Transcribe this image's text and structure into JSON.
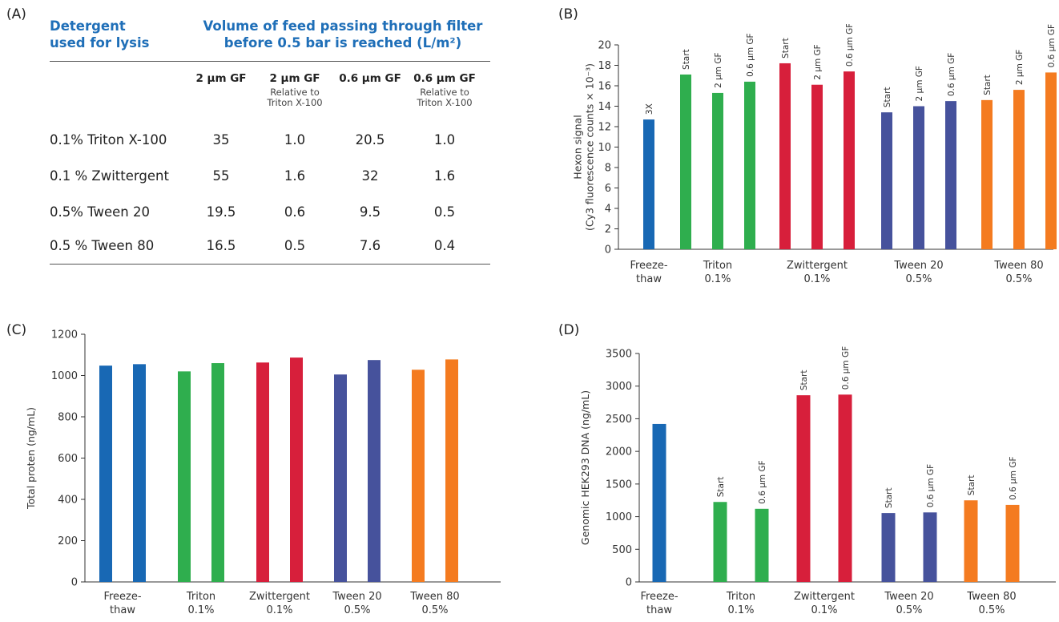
{
  "table": {
    "label": "(A)",
    "header_left": [
      "Detergent",
      "used for lysis"
    ],
    "header_right": [
      "Volume of feed passing through filter",
      "before 0.5 bar is reached (L/m²)"
    ],
    "columns": [
      {
        "main": "2 µm GF",
        "sub": [
          "",
          ""
        ]
      },
      {
        "main": "2 µm GF",
        "sub": [
          "Relative to",
          "Triton X-100"
        ]
      },
      {
        "main": "0.6 µm GF",
        "sub": [
          "",
          ""
        ]
      },
      {
        "main": "0.6 µm GF",
        "sub": [
          "Relative to",
          "Triton X-100"
        ]
      }
    ],
    "rows": [
      {
        "detergent": "0.1% Triton X-100",
        "values": [
          "35",
          "1.0",
          "20.5",
          "1.0"
        ]
      },
      {
        "detergent": "0.1 % Zwittergent",
        "values": [
          "55",
          "1.6",
          "32",
          "1.6"
        ]
      },
      {
        "detergent": "0.5% Tween 20",
        "values": [
          "19.5",
          "0.6",
          "9.5",
          "0.5"
        ]
      },
      {
        "detergent": "0.5 % Tween 80",
        "values": [
          "16.5",
          "0.5",
          "7.6",
          "0.4"
        ]
      }
    ]
  },
  "chart_data": [
    {
      "panel": "(B)",
      "type": "bar",
      "ylabel_lines": [
        "Hexon signal",
        "(Cy3 fluorescence counts × 10⁻³)"
      ],
      "ylim": [
        0,
        20
      ],
      "yticks": [
        0,
        2,
        4,
        6,
        8,
        10,
        12,
        14,
        16,
        18,
        20
      ],
      "groups": [
        {
          "label": [
            "Freeze-",
            "thaw"
          ],
          "color": "#1868b4",
          "bars": [
            {
              "value": 12.7,
              "label": "3X"
            }
          ]
        },
        {
          "label": [
            "Triton",
            "0.1%"
          ],
          "color": "#2fae4e",
          "bars": [
            {
              "value": 17.1,
              "label": "Start"
            },
            {
              "value": 15.3,
              "label": "2 µm GF"
            },
            {
              "value": 16.4,
              "label": "0.6 µm GF"
            }
          ]
        },
        {
          "label": [
            "Zwittergent",
            "0.1%"
          ],
          "color": "#d71f3b",
          "bars": [
            {
              "value": 18.2,
              "label": "Start"
            },
            {
              "value": 16.1,
              "label": "2 µm GF"
            },
            {
              "value": 17.4,
              "label": "0.6 µm GF"
            }
          ]
        },
        {
          "label": [
            "Tween 20",
            "0.5%"
          ],
          "color": "#46529c",
          "bars": [
            {
              "value": 13.4,
              "label": "Start"
            },
            {
              "value": 14.0,
              "label": "2 µm GF"
            },
            {
              "value": 14.5,
              "label": "0.6 µm GF"
            }
          ]
        },
        {
          "label": [
            "Tween 80",
            "0.5%"
          ],
          "color": "#f47b20",
          "bars": [
            {
              "value": 14.6,
              "label": "Start"
            },
            {
              "value": 15.6,
              "label": "2 µm GF"
            },
            {
              "value": 17.3,
              "label": "0.6 µm GF"
            }
          ]
        }
      ]
    },
    {
      "panel": "(C)",
      "type": "bar",
      "ylabel_lines": [
        "Total proten (ng/mL)"
      ],
      "ylim": [
        0,
        1200
      ],
      "yticks": [
        0,
        200,
        400,
        600,
        800,
        1000,
        1200
      ],
      "groups": [
        {
          "label": [
            "Freeze-",
            "thaw"
          ],
          "color": "#1868b4",
          "bars": [
            {
              "value": 1048,
              "label": ""
            },
            {
              "value": 1055,
              "label": ""
            }
          ]
        },
        {
          "label": [
            "Triton",
            "0.1%"
          ],
          "color": "#2fae4e",
          "bars": [
            {
              "value": 1020,
              "label": ""
            },
            {
              "value": 1060,
              "label": ""
            }
          ]
        },
        {
          "label": [
            "Zwittergent",
            "0.1%"
          ],
          "color": "#d71f3b",
          "bars": [
            {
              "value": 1063,
              "label": ""
            },
            {
              "value": 1087,
              "label": ""
            }
          ]
        },
        {
          "label": [
            "Tween 20",
            "0.5%"
          ],
          "color": "#46529c",
          "bars": [
            {
              "value": 1005,
              "label": ""
            },
            {
              "value": 1075,
              "label": ""
            }
          ]
        },
        {
          "label": [
            "Tween 80",
            "0.5%"
          ],
          "color": "#f47b20",
          "bars": [
            {
              "value": 1028,
              "label": ""
            },
            {
              "value": 1078,
              "label": ""
            }
          ]
        }
      ]
    },
    {
      "panel": "(D)",
      "type": "bar",
      "ylabel_lines": [
        "Genomic HEK293 DNA (ng/mL)"
      ],
      "ylim": [
        0,
        3500
      ],
      "yticks": [
        0,
        500,
        1000,
        1500,
        2000,
        2500,
        3000,
        3500
      ],
      "groups": [
        {
          "label": [
            "Freeze-",
            "thaw"
          ],
          "color": "#1868b4",
          "bars": [
            {
              "value": 2420,
              "label": ""
            }
          ]
        },
        {
          "label": [
            "Triton",
            "0.1%"
          ],
          "color": "#2fae4e",
          "bars": [
            {
              "value": 1225,
              "label": "Start"
            },
            {
              "value": 1120,
              "label": "0.6 µm GF"
            }
          ]
        },
        {
          "label": [
            "Zwittergent",
            "0.1%"
          ],
          "color": "#d71f3b",
          "bars": [
            {
              "value": 2860,
              "label": "Start"
            },
            {
              "value": 2870,
              "label": "0.6 µm GF"
            }
          ]
        },
        {
          "label": [
            "Tween 20",
            "0.5%"
          ],
          "color": "#46529c",
          "bars": [
            {
              "value": 1055,
              "label": "Start"
            },
            {
              "value": 1065,
              "label": "0.6 µm GF"
            }
          ]
        },
        {
          "label": [
            "Tween 80",
            "0.5%"
          ],
          "color": "#f47b20",
          "bars": [
            {
              "value": 1250,
              "label": "Start"
            },
            {
              "value": 1180,
              "label": "0.6 µm GF"
            }
          ]
        }
      ]
    }
  ]
}
